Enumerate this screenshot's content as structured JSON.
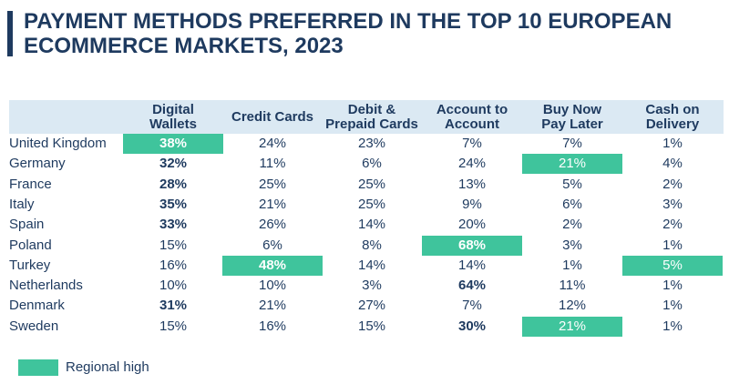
{
  "title": "PAYMENT METHODS PREFERRED IN THE TOP 10 EUROPEAN ECOMMERCE MARKETS, 2023",
  "colors": {
    "title": "#1e3a5f",
    "header_band": "#dbe9f3",
    "regional_high": "#3fc49c",
    "text": "#1e3a5f"
  },
  "legend": {
    "label": "Regional high"
  },
  "chart_data": {
    "type": "table",
    "title": "PAYMENT METHODS PREFERRED IN THE TOP 10 EUROPEAN ECOMMERCE MARKETS, 2023",
    "columns": [
      "Digital\nWallets",
      "Credit Cards",
      "Debit &\nPrepaid Cards",
      "Account to\nAccount",
      "Buy Now\nPay Later",
      "Cash on\nDelivery"
    ],
    "rows": [
      {
        "country": "United Kingdom",
        "values": [
          38,
          24,
          23,
          7,
          7,
          1
        ],
        "display": [
          "38%",
          "24%",
          "23%",
          "7%",
          "7%",
          "1%"
        ],
        "bold": [
          true,
          false,
          false,
          false,
          false,
          false
        ],
        "high": [
          true,
          false,
          false,
          false,
          false,
          false
        ]
      },
      {
        "country": "Germany",
        "values": [
          32,
          11,
          6,
          24,
          21,
          4
        ],
        "display": [
          "32%",
          "11%",
          "6%",
          "24%",
          "21%",
          "4%"
        ],
        "bold": [
          true,
          false,
          false,
          false,
          false,
          false
        ],
        "high": [
          false,
          false,
          false,
          false,
          true,
          false
        ]
      },
      {
        "country": "France",
        "values": [
          28,
          25,
          25,
          13,
          5,
          2
        ],
        "display": [
          "28%",
          "25%",
          "25%",
          "13%",
          "5%",
          "2%"
        ],
        "bold": [
          true,
          false,
          false,
          false,
          false,
          false
        ],
        "high": [
          false,
          false,
          false,
          false,
          false,
          false
        ]
      },
      {
        "country": "Italy",
        "values": [
          35,
          21,
          25,
          9,
          6,
          3
        ],
        "display": [
          "35%",
          "21%",
          "25%",
          "9%",
          "6%",
          "3%"
        ],
        "bold": [
          true,
          false,
          false,
          false,
          false,
          false
        ],
        "high": [
          false,
          false,
          false,
          false,
          false,
          false
        ]
      },
      {
        "country": "Spain",
        "values": [
          33,
          26,
          14,
          20,
          2,
          2
        ],
        "display": [
          "33%",
          "26%",
          "14%",
          "20%",
          "2%",
          "2%"
        ],
        "bold": [
          true,
          false,
          false,
          false,
          false,
          false
        ],
        "high": [
          false,
          false,
          false,
          false,
          false,
          false
        ]
      },
      {
        "country": "Poland",
        "values": [
          15,
          6,
          8,
          68,
          3,
          1
        ],
        "display": [
          "15%",
          "6%",
          "8%",
          "68%",
          "3%",
          "1%"
        ],
        "bold": [
          false,
          false,
          false,
          true,
          false,
          false
        ],
        "high": [
          false,
          false,
          false,
          true,
          false,
          false
        ]
      },
      {
        "country": "Turkey",
        "values": [
          16,
          48,
          14,
          14,
          1,
          5
        ],
        "display": [
          "16%",
          "48%",
          "14%",
          "14%",
          "1%",
          "5%"
        ],
        "bold": [
          false,
          true,
          false,
          false,
          false,
          false
        ],
        "high": [
          false,
          true,
          false,
          false,
          false,
          true
        ]
      },
      {
        "country": "Netherlands",
        "values": [
          10,
          10,
          3,
          64,
          11,
          1
        ],
        "display": [
          "10%",
          "10%",
          "3%",
          "64%",
          "11%",
          "1%"
        ],
        "bold": [
          false,
          false,
          false,
          true,
          false,
          false
        ],
        "high": [
          false,
          false,
          false,
          false,
          false,
          false
        ]
      },
      {
        "country": "Denmark",
        "values": [
          31,
          21,
          27,
          7,
          12,
          1
        ],
        "display": [
          "31%",
          "21%",
          "27%",
          "7%",
          "12%",
          "1%"
        ],
        "bold": [
          true,
          false,
          false,
          false,
          false,
          false
        ],
        "high": [
          false,
          false,
          false,
          false,
          false,
          false
        ]
      },
      {
        "country": "Sweden",
        "values": [
          15,
          16,
          15,
          30,
          21,
          1
        ],
        "display": [
          "15%",
          "16%",
          "15%",
          "30%",
          "21%",
          "1%"
        ],
        "bold": [
          false,
          false,
          false,
          true,
          false,
          false
        ],
        "high": [
          false,
          false,
          false,
          false,
          true,
          false
        ]
      }
    ]
  }
}
